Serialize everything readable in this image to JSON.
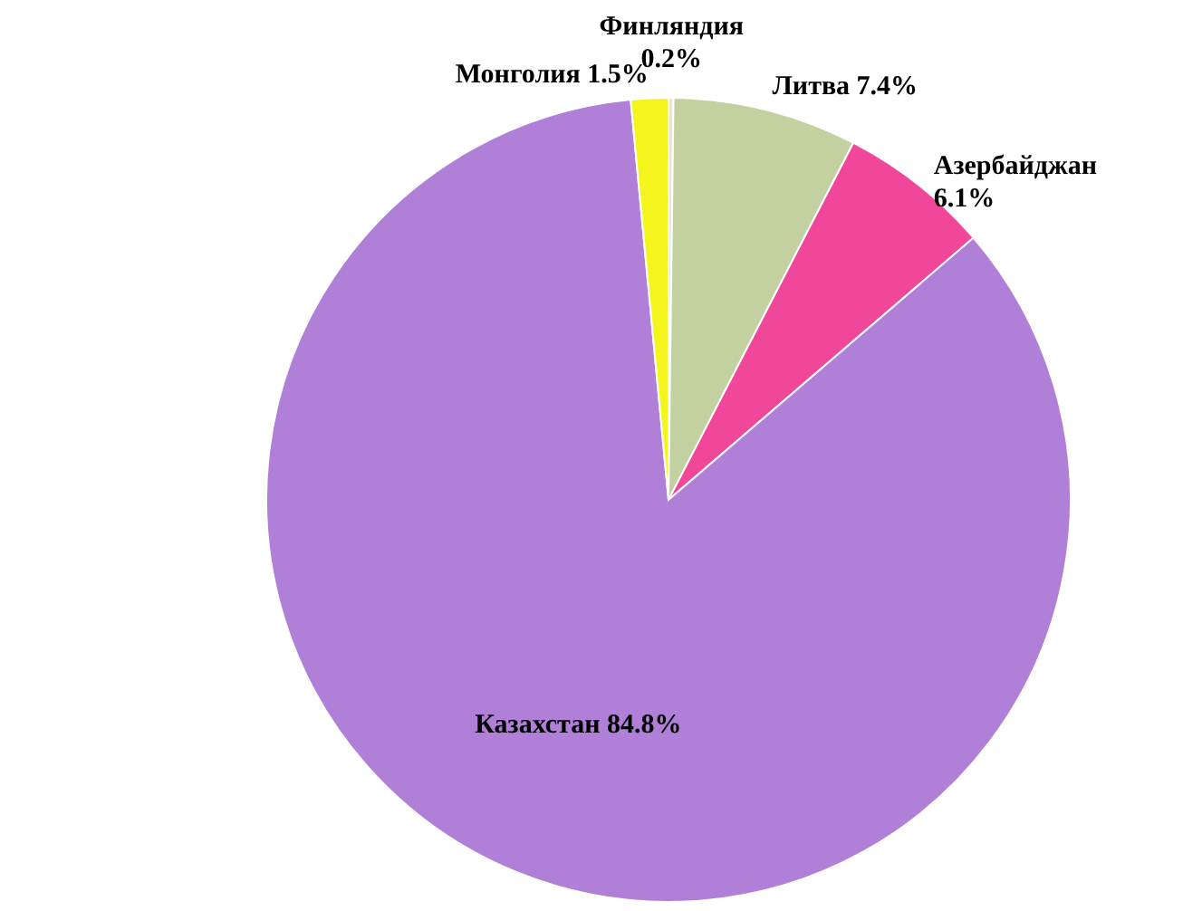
{
  "chart_data": {
    "type": "pie",
    "categories": [
      "Финляндия",
      "Литва",
      "Азербайджан",
      "Казахстан",
      "Монголия"
    ],
    "values": [
      0.2,
      7.4,
      6.1,
      84.8,
      1.5
    ],
    "value_labels": [
      "0.2%",
      "7.4%",
      "6.1%",
      "84.8%",
      "1.5%"
    ],
    "colors": [
      "#e8e8d0",
      "#c3d09f",
      "#f0479a",
      "#b07fd8",
      "#f5f51e"
    ]
  }
}
